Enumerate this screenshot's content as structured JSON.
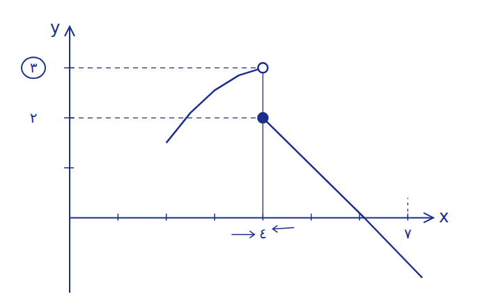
{
  "chart_data": {
    "type": "line",
    "x_label": "x",
    "y_label": "y",
    "xlim": [
      0,
      7.5
    ],
    "ylim": [
      -1.5,
      3.8
    ],
    "xticks": [
      {
        "value": 1,
        "label": null
      },
      {
        "value": 2,
        "label": null
      },
      {
        "value": 3,
        "label": null
      },
      {
        "value": 4,
        "label": "٤"
      },
      {
        "value": 5,
        "label": null
      },
      {
        "value": 6,
        "label": null
      },
      {
        "value": 7,
        "label": "٧"
      }
    ],
    "yticks": [
      {
        "value": 1,
        "label": null
      },
      {
        "value": 2,
        "label": "٢"
      },
      {
        "value": 3,
        "label": "٣"
      }
    ],
    "color": "#1c2d8c",
    "series": [
      {
        "x": [
          2,
          2.5,
          3,
          3.5,
          4
        ],
        "values": [
          1.5,
          2.1,
          2.55,
          2.85,
          3
        ],
        "marker": "open-end",
        "line_style": "solid"
      },
      {
        "x": [
          4,
          6.1,
          7.3
        ],
        "values": [
          2,
          0,
          -1.2
        ],
        "marker": "filled-start",
        "line_style": "solid"
      }
    ]
  }
}
